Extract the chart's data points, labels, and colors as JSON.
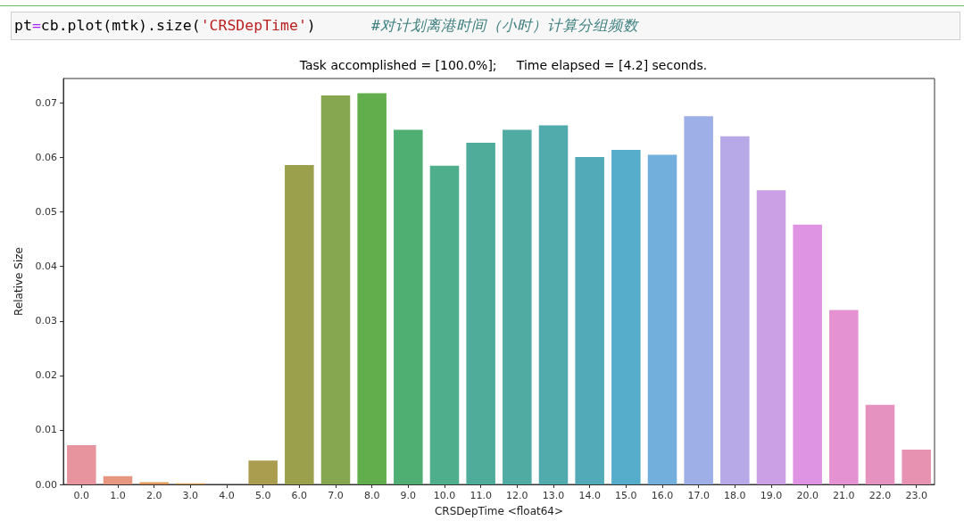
{
  "chart_data": {
    "type": "bar",
    "title": "Task accomplished = [100.0%];     Time elapsed = [4.2] seconds.",
    "xlabel": "CRSDepTime <float64>",
    "ylabel": "Relative Size",
    "annotations": [
      "pt=cb.plot(mtk).size('CRSDepTime')",
      "#对计划离港时间（小时）计算分组频数"
    ],
    "categories": [
      "0.0",
      "1.0",
      "2.0",
      "3.0",
      "4.0",
      "5.0",
      "6.0",
      "7.0",
      "8.0",
      "9.0",
      "10.0",
      "11.0",
      "12.0",
      "13.0",
      "14.0",
      "15.0",
      "16.0",
      "17.0",
      "18.0",
      "19.0",
      "20.0",
      "21.0",
      "22.0",
      "23.0"
    ],
    "values": [
      0.0072,
      0.0015,
      0.0004,
      0.0002,
      0,
      0.0044,
      0.0586,
      0.0714,
      0.0718,
      0.0651,
      0.0585,
      0.0627,
      0.0651,
      0.0659,
      0.0601,
      0.0614,
      0.0605,
      0.0676,
      0.0639,
      0.054,
      0.0477,
      0.032,
      0.0146,
      0.0064
    ],
    "colors": [
      "#e8949f",
      "#e7977f",
      "#e0995a",
      "#d29f52",
      "#c1a04f",
      "#ab9d4f",
      "#9aa04c",
      "#86a74f",
      "#62ad4c",
      "#4faf72",
      "#4fae8c",
      "#4fac9b",
      "#50aba3",
      "#51aaab",
      "#52a9b7",
      "#56accb",
      "#72afdc",
      "#9eaee6",
      "#b7a9e7",
      "#cba0e5",
      "#df93e3",
      "#e592d3",
      "#e692c1",
      "#e692b0"
    ],
    "ylim": [
      0,
      0.0745
    ],
    "yticks": [
      {
        "value": 0,
        "label": "0.00"
      },
      {
        "value": 0.01,
        "label": "0.01"
      },
      {
        "value": 0.02,
        "label": "0.02"
      },
      {
        "value": 0.03,
        "label": "0.03"
      },
      {
        "value": 0.04,
        "label": "0.04"
      },
      {
        "value": 0.05,
        "label": "0.05"
      },
      {
        "value": 0.06,
        "label": "0.06"
      },
      {
        "value": 0.07,
        "label": "0.07"
      }
    ]
  }
}
